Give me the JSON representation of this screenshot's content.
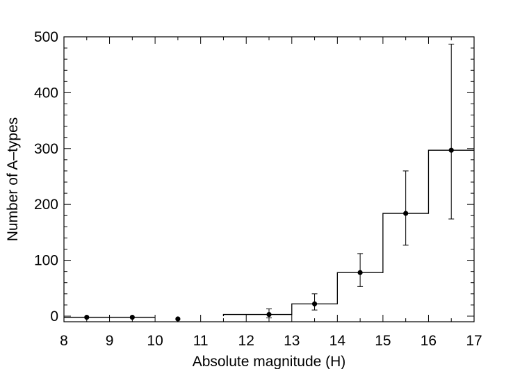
{
  "chart_data": {
    "type": "histogram",
    "title": "",
    "xlabel": "Absolute magnitude (H)",
    "ylabel": "Number of A–types",
    "xlim": [
      8,
      17
    ],
    "ylim": [
      -10,
      500
    ],
    "xticks": [
      8,
      9,
      10,
      11,
      12,
      13,
      14,
      15,
      16,
      17
    ],
    "yticks": [
      0,
      100,
      200,
      300,
      400,
      500
    ],
    "grid": false,
    "legend": "none",
    "bins": [
      {
        "left": 8,
        "right": 9,
        "value": -2,
        "center": 8.5,
        "err_low": 0,
        "err_high": 0
      },
      {
        "left": 9,
        "right": 10,
        "value": -2,
        "center": 9.5,
        "err_low": 0,
        "err_high": 0
      },
      {
        "left": 10,
        "right": 11,
        "value": -5,
        "center": 10.5,
        "err_low": 0,
        "err_high": 0
      },
      {
        "left": 11,
        "right": 12,
        "value": 0,
        "center": 11.5,
        "err_low": 0,
        "err_high": 0,
        "no_point": true
      },
      {
        "left": 12,
        "right": 13,
        "value": 3,
        "center": 12.5,
        "err_low": -3,
        "err_high": 13
      },
      {
        "left": 13,
        "right": 14,
        "value": 22,
        "center": 13.5,
        "err_low": 11,
        "err_high": 40
      },
      {
        "left": 14,
        "right": 15,
        "value": 78,
        "center": 14.5,
        "err_low": 53,
        "err_high": 112
      },
      {
        "left": 15,
        "right": 16,
        "value": 184,
        "center": 15.5,
        "err_low": 127,
        "err_high": 260
      },
      {
        "left": 16,
        "right": 17,
        "value": 297,
        "center": 16.5,
        "err_low": 174,
        "err_high": 487
      }
    ],
    "step_line": [
      {
        "x1": 8,
        "x2": 10,
        "y": -2
      },
      {
        "x1": 11.5,
        "x2": 13,
        "y": 3
      },
      {
        "x1": 13,
        "x2": 14,
        "y": 22
      },
      {
        "x1": 14,
        "x2": 15,
        "y": 78
      },
      {
        "x1": 15,
        "x2": 16,
        "y": 184
      },
      {
        "x1": 16,
        "x2": 17,
        "y": 297
      }
    ]
  }
}
